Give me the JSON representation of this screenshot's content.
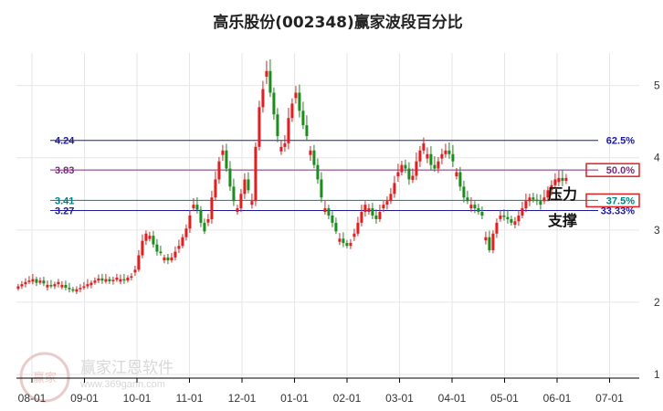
{
  "chart_data": {
    "type": "candlestick",
    "title": "高乐股份(002348)赢家波段百分比",
    "x_ticks": [
      "08-01",
      "09-01",
      "10-01",
      "11-01",
      "12-01",
      "01-01",
      "02-01",
      "03-01",
      "04-01",
      "05-01",
      "06-01",
      "07-01"
    ],
    "y_ticks": [
      1,
      2,
      3,
      4,
      5
    ],
    "ylim": [
      0.95,
      5.45
    ],
    "grid": true,
    "levels": [
      {
        "value": 4.24,
        "label": "4.24",
        "pct": "62.5%",
        "color": "#1a1a9a",
        "boxed": false
      },
      {
        "value": 3.83,
        "label": "3.83",
        "pct": "50.0%",
        "color": "#7a2a7a",
        "boxed": true
      },
      {
        "value": 3.41,
        "label": "3.41",
        "pct": "37.5%",
        "color": "#008080",
        "boxed": true
      },
      {
        "value": 3.27,
        "label": "3.27",
        "pct": "33.33%",
        "color": "#1a1a9a",
        "boxed": false
      }
    ],
    "annotations": {
      "resistance": "压力",
      "support": "支撑"
    },
    "watermark": {
      "text": "赢家江恩软件",
      "url": "www.369gann.com",
      "logo": "赢家"
    },
    "colors": {
      "up": "#e02020",
      "down": "#1f8a1f",
      "title": "#222222"
    },
    "series": {
      "start": "2023-07-24",
      "closes": [
        2.22,
        2.25,
        2.28,
        2.3,
        2.32,
        2.27,
        2.3,
        2.26,
        2.24,
        2.22,
        2.25,
        2.28,
        2.24,
        2.2,
        2.18,
        2.16,
        2.18,
        2.2,
        2.22,
        2.25,
        2.27,
        2.3,
        2.33,
        2.3,
        2.32,
        2.29,
        2.31,
        2.34,
        2.32,
        2.3,
        2.34,
        2.36,
        2.45,
        2.65,
        2.85,
        2.95,
        2.92,
        2.8,
        2.7,
        2.68,
        2.62,
        2.58,
        2.62,
        2.7,
        2.78,
        2.9,
        3.02,
        3.2,
        3.35,
        3.28,
        3.1,
        2.98,
        3.15,
        3.45,
        3.7,
        3.95,
        4.1,
        3.85,
        3.6,
        3.4,
        3.3,
        3.5,
        3.7,
        3.55,
        3.4,
        4.15,
        4.7,
        4.95,
        5.2,
        4.9,
        4.6,
        4.3,
        4.15,
        4.2,
        4.55,
        4.75,
        4.9,
        4.65,
        4.45,
        4.3,
        4.1,
        3.9,
        3.7,
        3.45,
        3.3,
        3.2,
        3.1,
        2.98,
        2.88,
        2.82,
        2.78,
        2.82,
        2.95,
        3.1,
        3.25,
        3.35,
        3.3,
        3.2,
        3.15,
        3.25,
        3.35,
        3.4,
        3.5,
        3.65,
        3.8,
        3.9,
        3.85,
        3.7,
        3.75,
        3.95,
        4.1,
        4.2,
        4.05,
        3.9,
        3.85,
        3.95,
        4.05,
        4.1,
        4.05,
        3.95,
        3.8,
        3.6,
        3.45,
        3.4,
        3.35,
        3.3,
        3.25,
        3.2,
        2.9,
        2.72,
        2.95,
        3.1,
        3.2,
        3.18,
        3.15,
        3.1,
        3.12,
        3.2,
        3.3,
        3.4,
        3.45,
        3.42,
        3.4,
        3.35,
        3.45,
        3.55,
        3.62,
        3.7,
        3.72,
        3.68,
        3.72
      ]
    }
  }
}
